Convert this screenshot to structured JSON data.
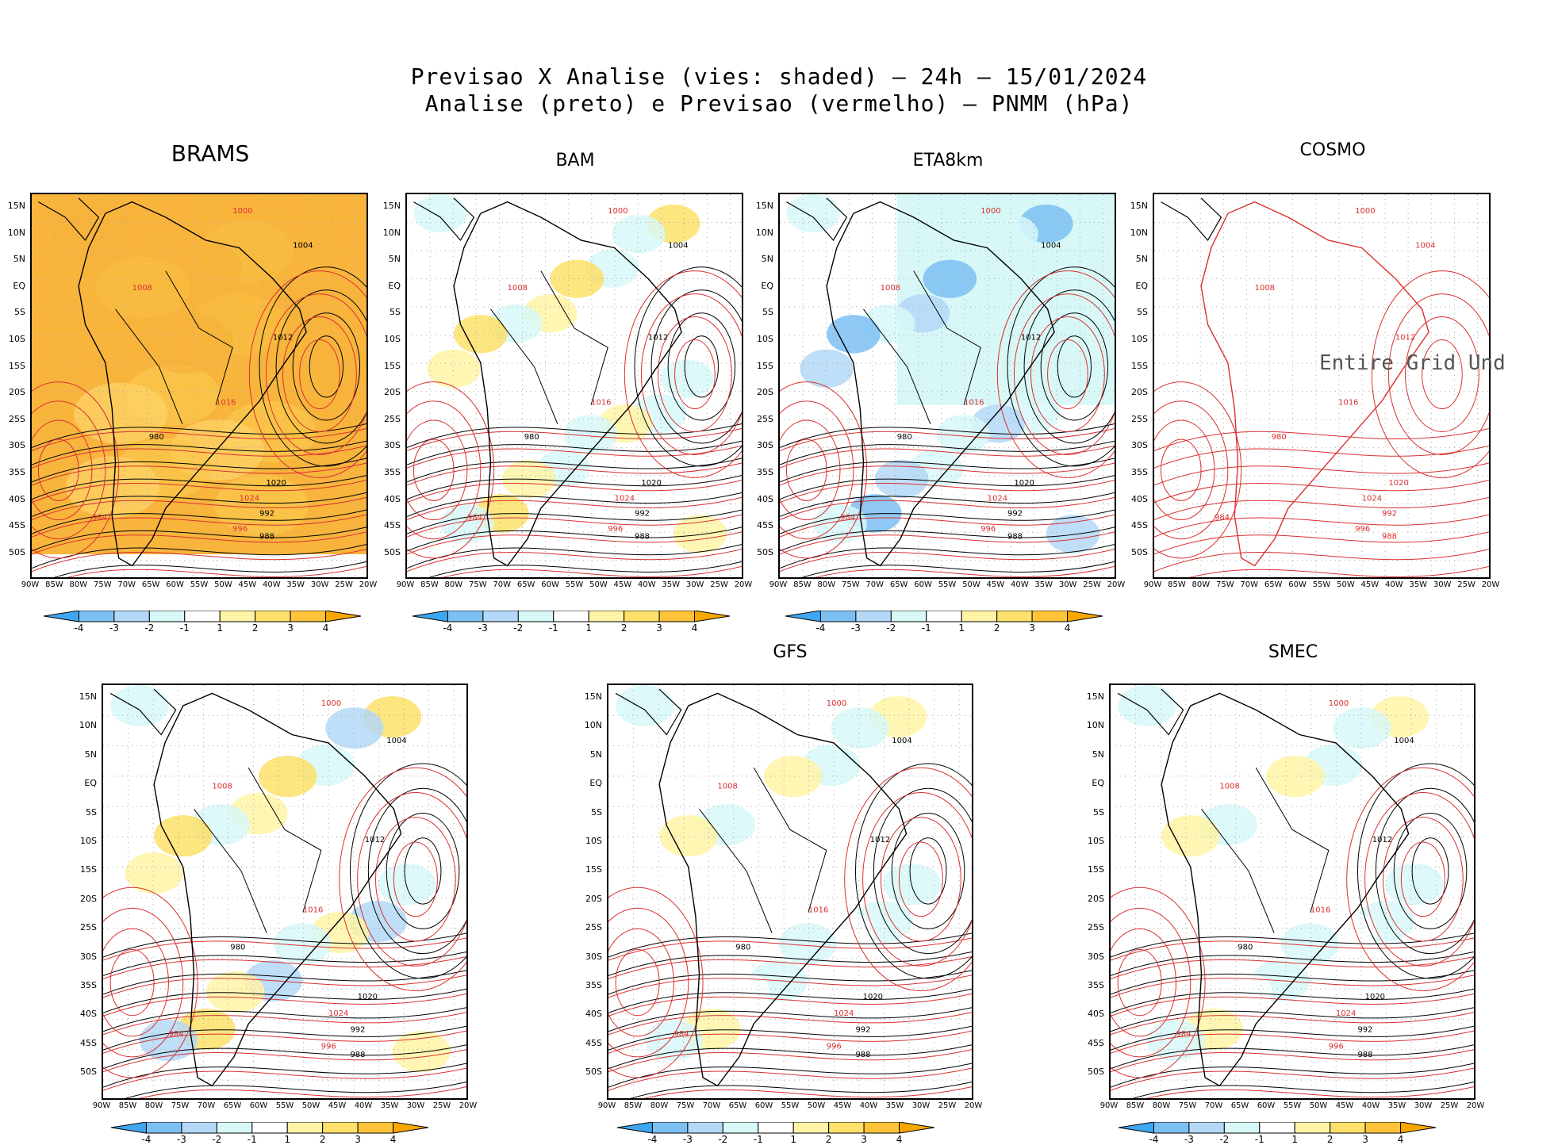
{
  "figure": {
    "title_line1": "Previsao X Analise (vies: shaded) — 24h — 15/01/2024",
    "title_line2": "Analise (preto) e Previsao (vermelho) — PNMM (hPa)"
  },
  "axes": {
    "lat_labels": [
      "15N",
      "10N",
      "5N",
      "EQ",
      "5S",
      "10S",
      "15S",
      "20S",
      "25S",
      "30S",
      "35S",
      "40S",
      "45S",
      "50S"
    ],
    "lon_labels": [
      "90W",
      "85W",
      "80W",
      "75W",
      "70W",
      "65W",
      "60W",
      "55W",
      "50W",
      "45W",
      "40W",
      "35W",
      "30W",
      "25W",
      "20W"
    ]
  },
  "colorbar": {
    "labels": [
      "-4",
      "-3",
      "-2",
      "-1",
      "1",
      "2",
      "3",
      "4"
    ],
    "colors": [
      "#3ea7f0",
      "#7cc0f3",
      "#b4d8f7",
      "#d8f8f8",
      "#ffffff",
      "#fff4a6",
      "#fde16a",
      "#fdc43a",
      "#f7a800"
    ]
  },
  "panels": [
    {
      "name": "BRAMS",
      "note": ""
    },
    {
      "name": "BAM",
      "note": ""
    },
    {
      "name": "ETA8km",
      "note": ""
    },
    {
      "name": "COSMO",
      "note": "Entire Grid Und"
    },
    {
      "name": "",
      "note": ""
    },
    {
      "name": "GFS",
      "note": ""
    },
    {
      "name": "SMEC",
      "note": ""
    }
  ],
  "contour_labels": [
    "1000",
    "1004",
    "1008",
    "1012",
    "1016",
    "1020",
    "1024",
    "992",
    "996",
    "988",
    "984",
    "980"
  ]
}
